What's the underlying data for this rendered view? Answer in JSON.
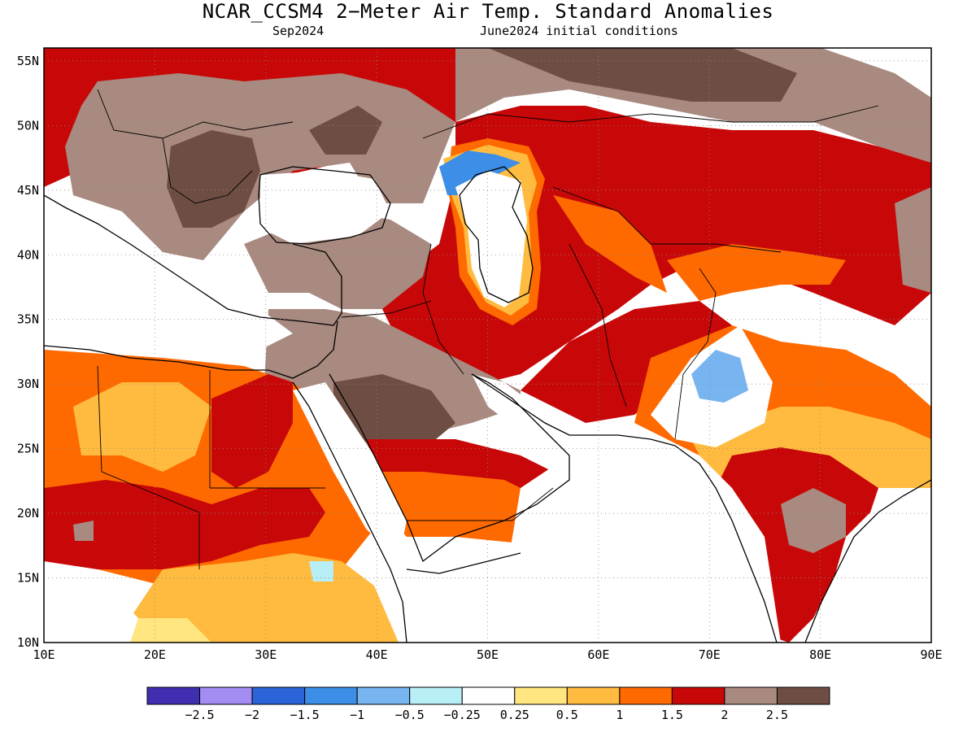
{
  "title": "NCAR_CCSM4 2−Meter Air Temp. Standard Anomalies",
  "valid_month": "Sep2024",
  "init_conditions": "June2024 initial conditions",
  "map": {
    "lon_range": [
      10,
      90
    ],
    "lat_range": [
      10,
      56
    ],
    "lon_ticks": [
      "10E",
      "20E",
      "30E",
      "40E",
      "50E",
      "60E",
      "70E",
      "80E",
      "90E"
    ],
    "lat_ticks": [
      "10N",
      "15N",
      "20N",
      "25N",
      "30N",
      "35N",
      "40N",
      "45N",
      "50N",
      "55N"
    ],
    "grid": "dotted"
  },
  "colorbar": {
    "colors": [
      "#3f2fb0",
      "#a38cf2",
      "#2a64d8",
      "#3d8ee6",
      "#78b4f0",
      "#b8eef6",
      "#ffffff",
      "#ffe680",
      "#ffbb3f",
      "#ff6a00",
      "#c80808",
      "#a88a80",
      "#6e4e44"
    ],
    "labels": [
      "−2.5",
      "−2",
      "−1.5",
      "−1",
      "−0.5",
      "−0.25",
      "0.25",
      "0.5",
      "1",
      "1.5",
      "2",
      "2.5"
    ]
  }
}
